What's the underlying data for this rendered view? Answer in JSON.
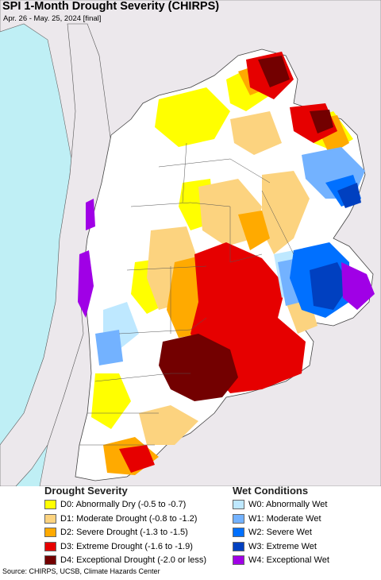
{
  "title": "SPI 1-Month Drought Severity (CHIRPS)",
  "subtitle": "Apr. 26 - May. 25, 2024 [final]",
  "legend": {
    "drought_heading": "Drought Severity",
    "wet_heading": "Wet Conditions",
    "drought": [
      {
        "label": "D0: Abnormally Dry (-0.5 to -0.7)",
        "color": "#ffff00"
      },
      {
        "label": "D1: Moderate Drought (-0.8 to -1.2)",
        "color": "#fcd37f"
      },
      {
        "label": "D2: Severe Drought (-1.3 to -1.5)",
        "color": "#ffaa00"
      },
      {
        "label": "D3: Extreme Drought (-1.6 to -1.9)",
        "color": "#e60000"
      },
      {
        "label": "D4: Exceptional Drought (-2.0 or less)",
        "color": "#730000"
      }
    ],
    "wet": [
      {
        "label": "W0: Abnormally Wet",
        "color": "#bee8ff"
      },
      {
        "label": "W1: Moderate Wet",
        "color": "#73b2ff"
      },
      {
        "label": "W2: Severe Wet",
        "color": "#0070ff"
      },
      {
        "label": "W3: Extreme Wet",
        "color": "#0040c0"
      },
      {
        "label": "W4: Exceptional Wet",
        "color": "#a000e6"
      }
    ]
  },
  "source": "Source: CHIRPS, UCSB, Climate Hazards Center",
  "colors": {
    "ocean": "#bfeff5",
    "neighbor_land": "#ece8ec",
    "no_drought": "#ffffff",
    "border": "#444444"
  }
}
